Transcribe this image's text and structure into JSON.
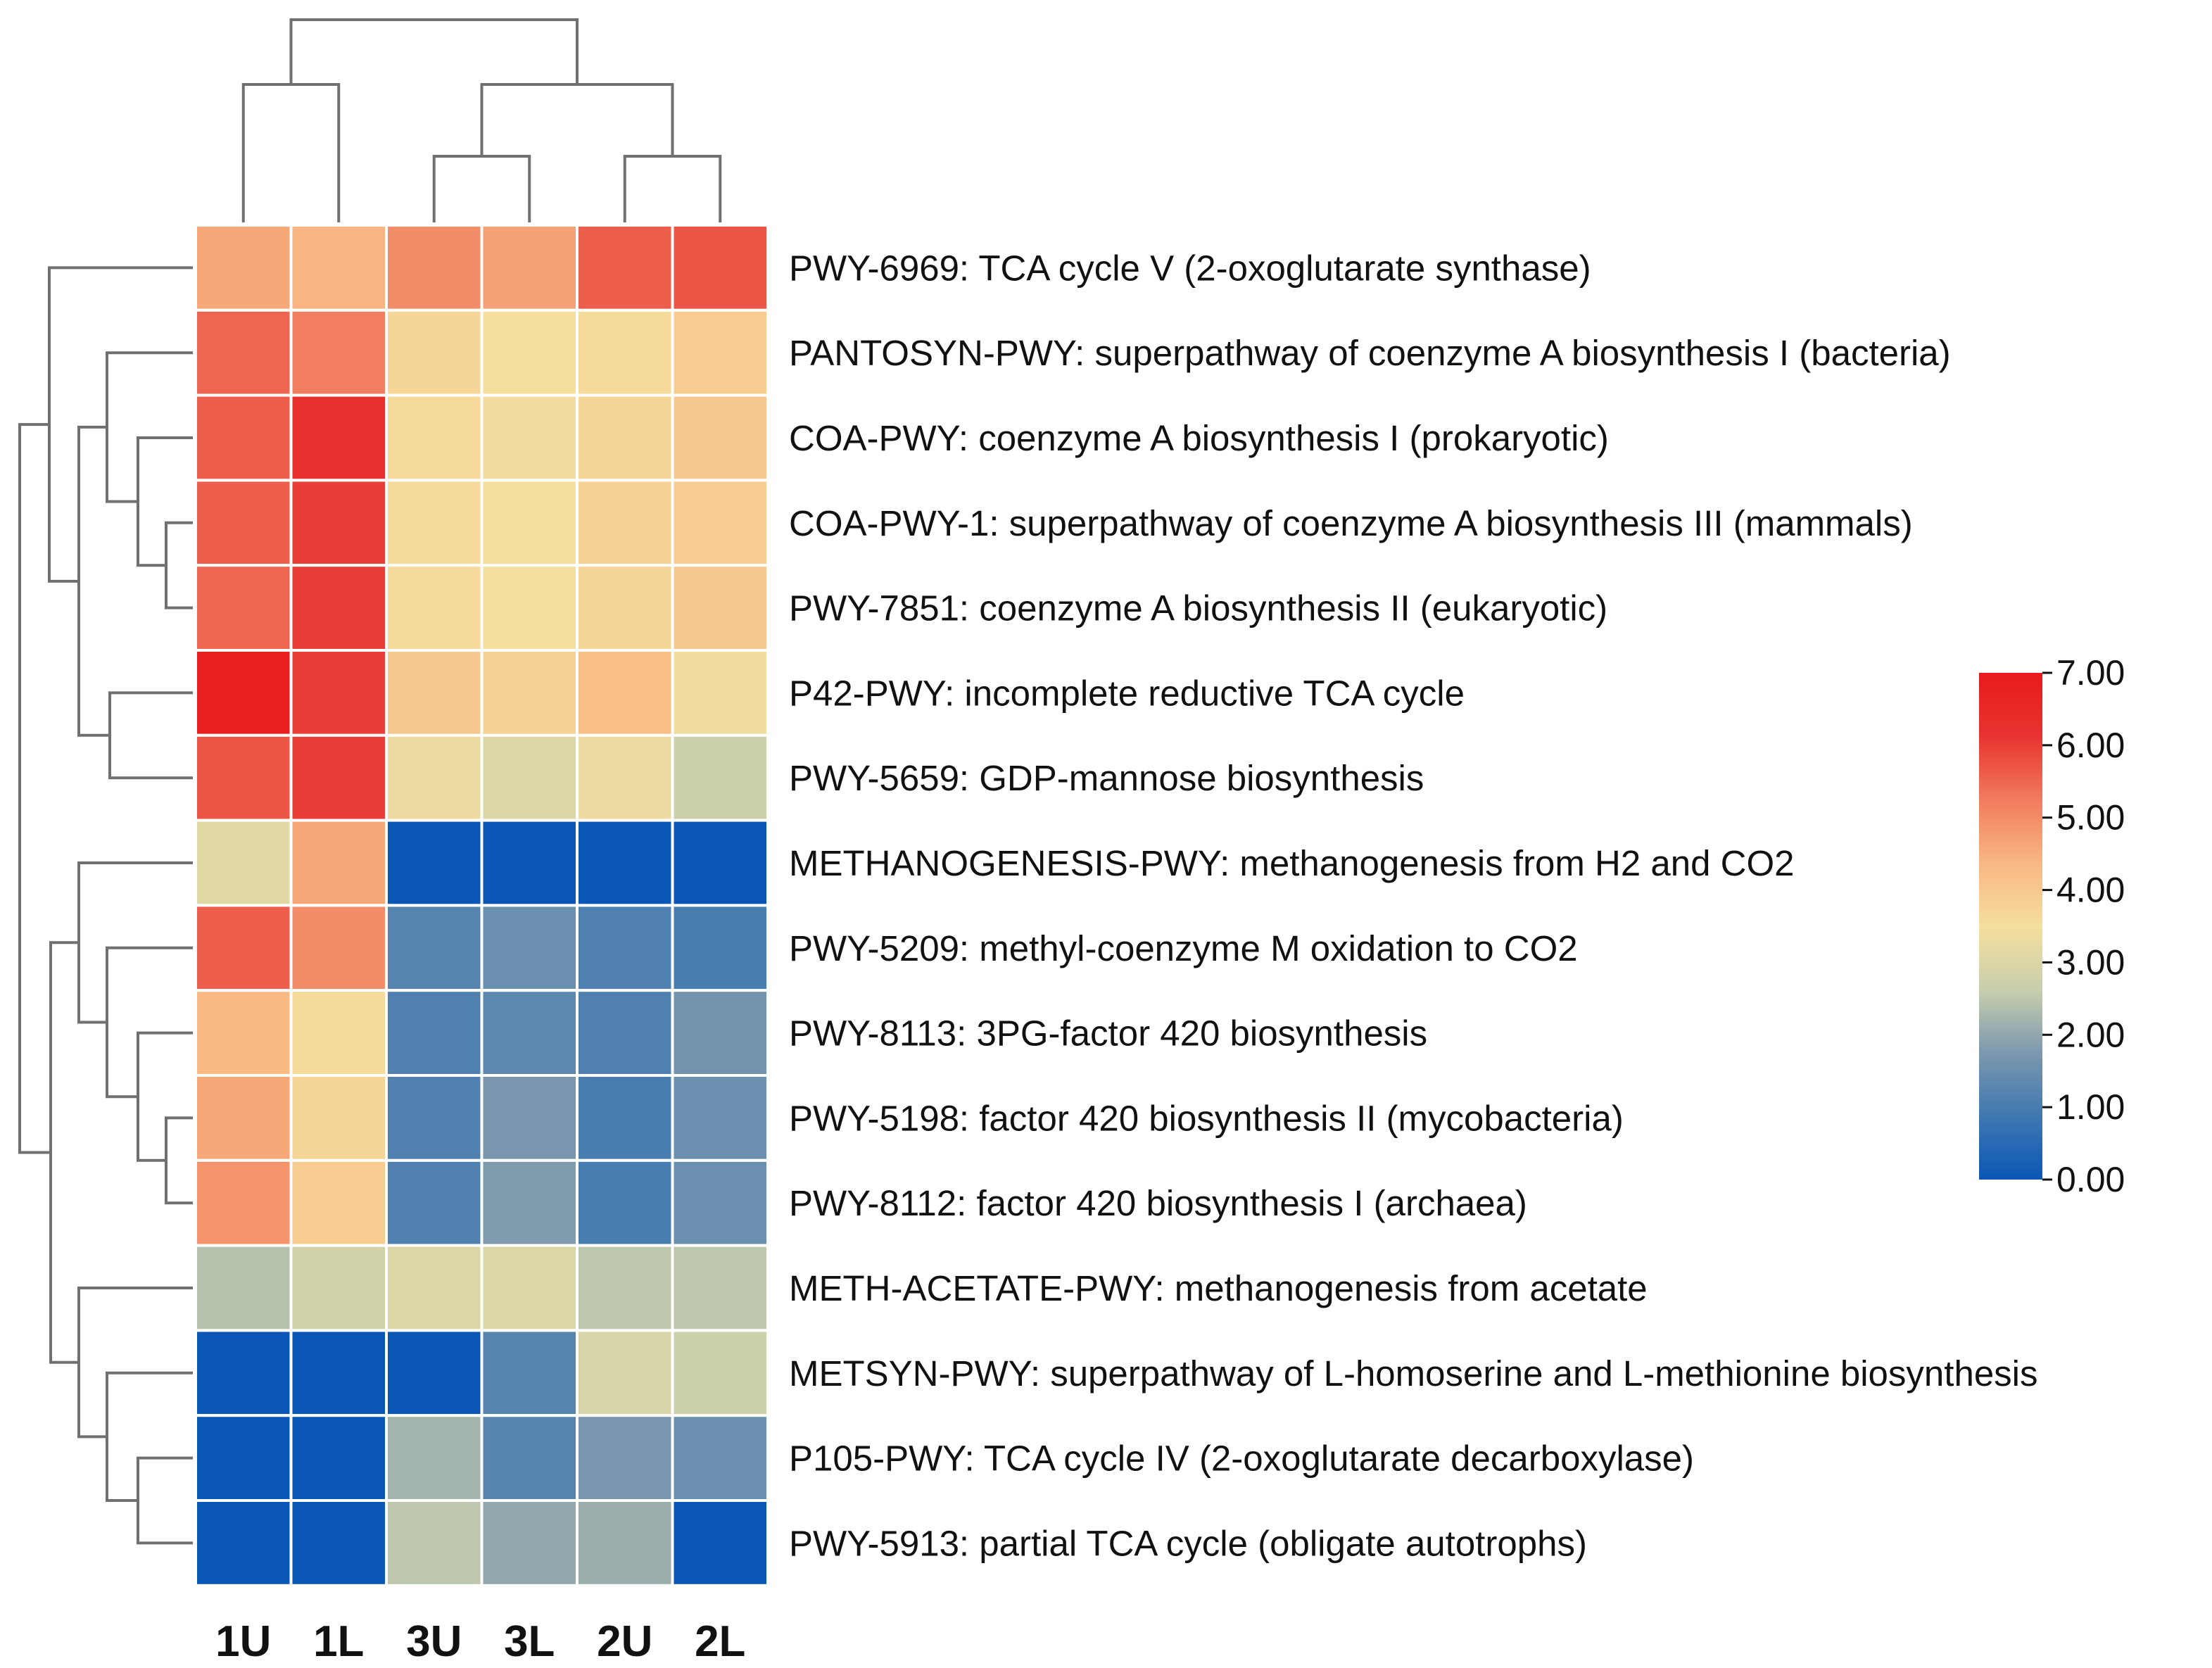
{
  "chart_data": {
    "type": "heatmap",
    "columns": [
      "1U",
      "1L",
      "3U",
      "3L",
      "2U",
      "2L"
    ],
    "rows": [
      {
        "label": "PWY-6969: TCA cycle V (2-oxoglutarate synthase)",
        "values": [
          4.6,
          4.4,
          5.0,
          4.7,
          5.6,
          5.7
        ]
      },
      {
        "label": "PANTOSYN-PWY: superpathway of coenzyme A biosynthesis I (bacteria)",
        "values": [
          5.5,
          5.2,
          3.7,
          3.5,
          3.6,
          3.9
        ]
      },
      {
        "label": "COA-PWY: coenzyme A biosynthesis I (prokaryotic)",
        "values": [
          5.6,
          6.2,
          3.6,
          3.4,
          3.7,
          4.0
        ]
      },
      {
        "label": "COA-PWY-1: superpathway of coenzyme A biosynthesis III (mammals)",
        "values": [
          5.6,
          6.0,
          3.6,
          3.5,
          3.8,
          3.9
        ]
      },
      {
        "label": "PWY-7851: coenzyme A biosynthesis II (eukaryotic)",
        "values": [
          5.5,
          6.0,
          3.6,
          3.5,
          3.7,
          4.0
        ]
      },
      {
        "label": "P42-PWY: incomplete reductive TCA cycle",
        "values": [
          6.8,
          6.0,
          4.0,
          3.8,
          4.2,
          3.4
        ]
      },
      {
        "label": "PWY-5659: GDP-mannose biosynthesis",
        "values": [
          5.7,
          6.0,
          3.3,
          3.0,
          3.3,
          2.7
        ]
      },
      {
        "label": "METHANOGENESIS-PWY: methanogenesis from H2 and CO2",
        "values": [
          3.1,
          4.6,
          0.0,
          0.0,
          0.0,
          0.0
        ]
      },
      {
        "label": "PWY-5209: methyl-coenzyme M oxidation to CO2",
        "values": [
          5.6,
          5.0,
          1.2,
          1.5,
          1.1,
          1.0
        ]
      },
      {
        "label": "PWY-8113: 3PG-factor 420 biosynthesis",
        "values": [
          4.3,
          3.6,
          1.1,
          1.3,
          1.1,
          1.6
        ]
      },
      {
        "label": "PWY-5198: factor 420 biosynthesis II (mycobacteria)",
        "values": [
          4.6,
          3.7,
          1.1,
          1.7,
          1.0,
          1.5
        ]
      },
      {
        "label": "PWY-8112: factor 420 biosynthesis I (archaea)",
        "values": [
          4.9,
          3.9,
          1.1,
          1.8,
          1.0,
          1.5
        ]
      },
      {
        "label": "METH-ACETATE-PWY: methanogenesis from acetate",
        "values": [
          2.4,
          2.8,
          3.0,
          3.0,
          2.5,
          2.5
        ]
      },
      {
        "label": "METSYN-PWY: superpathway of L-homoserine and L-methionine biosynthesis",
        "values": [
          0.0,
          0.0,
          0.0,
          1.2,
          2.9,
          2.7
        ]
      },
      {
        "label": "P105-PWY: TCA cycle IV (2-oxoglutarate decarboxylase)",
        "values": [
          0.0,
          0.0,
          2.2,
          1.2,
          1.7,
          1.5
        ]
      },
      {
        "label": "PWY-5913: partial TCA cycle (obligate autotrophs)",
        "values": [
          0.0,
          0.0,
          2.5,
          2.0,
          2.1,
          0.0
        ]
      }
    ],
    "colorbar": {
      "min": 0.0,
      "max": 7.0,
      "ticks": [
        "0.00",
        "1.00",
        "2.00",
        "3.00",
        "4.00",
        "5.00",
        "6.00",
        "7.00"
      ],
      "colors": [
        "#0a56b6",
        "#3f78b0",
        "#7c98ae",
        "#c8cfad",
        "#f5df9d",
        "#f9b782",
        "#f17b5e",
        "#e83330",
        "#e81b1b"
      ]
    },
    "column_dendrogram": "top",
    "row_dendrogram": "left"
  }
}
